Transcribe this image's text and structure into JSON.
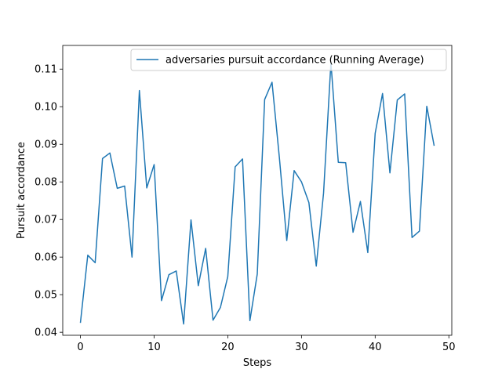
{
  "chart_data": {
    "type": "line",
    "title": "",
    "xlabel": "Steps",
    "ylabel": "Pursuit accordance",
    "xlim": [
      -2.4,
      50.4
    ],
    "ylim": [
      0.0392,
      0.1163
    ],
    "x_ticks": [
      0,
      10,
      20,
      30,
      40,
      50
    ],
    "y_ticks": [
      0.04,
      0.05,
      0.06,
      0.07,
      0.08,
      0.09,
      0.1,
      0.11
    ],
    "y_tick_labels": [
      "0.04",
      "0.05",
      "0.06",
      "0.07",
      "0.08",
      "0.09",
      "0.10",
      "0.11"
    ],
    "grid": false,
    "legend_position": "upper right",
    "x": [
      0,
      1,
      2,
      3,
      4,
      5,
      6,
      7,
      8,
      9,
      10,
      11,
      12,
      13,
      14,
      15,
      16,
      17,
      18,
      19,
      20,
      21,
      22,
      23,
      24,
      25,
      26,
      27,
      28,
      29,
      30,
      31,
      32,
      33,
      34,
      35,
      36,
      37,
      38,
      39,
      40,
      41,
      42,
      43,
      44,
      45,
      46,
      47,
      48
    ],
    "series": [
      {
        "name": "adversaries pursuit accordance (Running Average)",
        "color": "#1f77b4",
        "values": [
          0.0425,
          0.0605,
          0.0585,
          0.0862,
          0.0877,
          0.0783,
          0.0789,
          0.06,
          0.1043,
          0.0784,
          0.0846,
          0.0484,
          0.0553,
          0.0563,
          0.0422,
          0.0699,
          0.0524,
          0.0623,
          0.0432,
          0.0466,
          0.0548,
          0.084,
          0.0861,
          0.0431,
          0.0555,
          0.1019,
          0.1065,
          0.0864,
          0.0644,
          0.083,
          0.08,
          0.0745,
          0.0576,
          0.077,
          0.1117,
          0.0852,
          0.0851,
          0.0666,
          0.0748,
          0.0612,
          0.0929,
          0.1035,
          0.0824,
          0.1018,
          0.1034,
          0.0652,
          0.0669,
          0.1001,
          0.0896
        ]
      }
    ]
  }
}
